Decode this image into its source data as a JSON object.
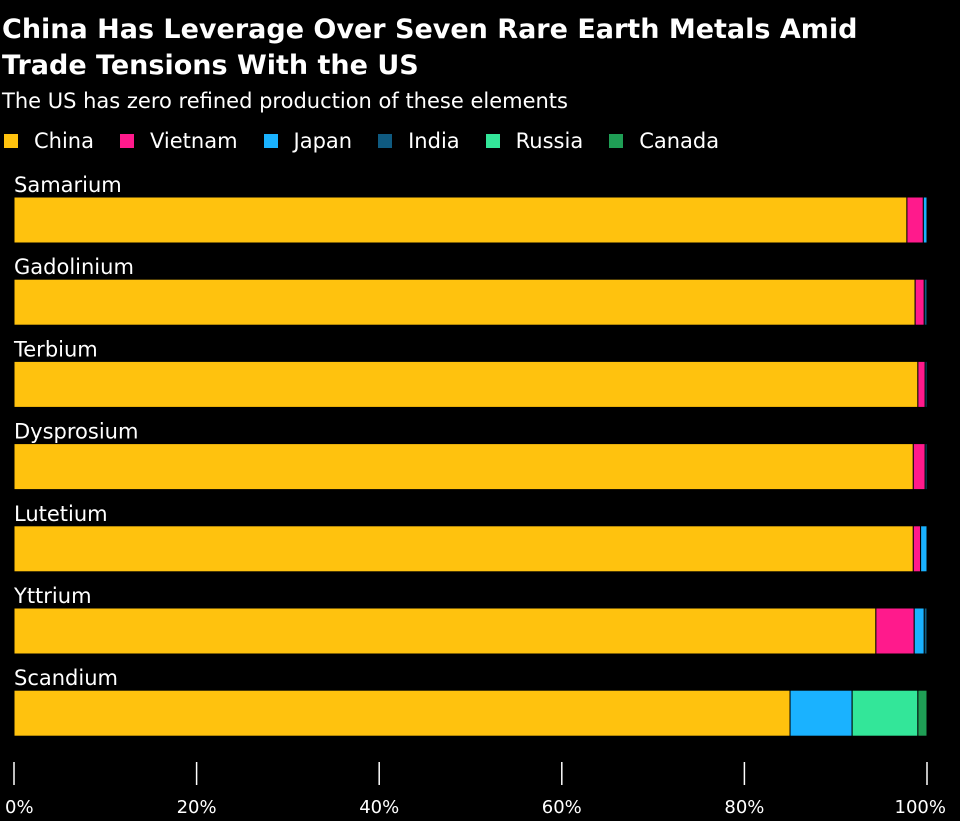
{
  "title": "China Has Leverage Over Seven Rare Earth Metals Amid Trade Tensions With the US",
  "subtitle": "The US has zero refined production of these elements",
  "colors": {
    "China": "#ffc20e",
    "Vietnam": "#ff1a8c",
    "Japan": "#1ab2ff",
    "India": "#0f5a80",
    "Russia": "#33e699",
    "Canada": "#1f9e55",
    "background": "#000000",
    "bar_separator": "#000000"
  },
  "chart_data": {
    "type": "bar",
    "orientation": "horizontal",
    "stacked": true,
    "title": "China Has Leverage Over Seven Rare Earth Metals Amid Trade Tensions With the US",
    "subtitle": "The US has zero refined production of these elements",
    "categories": [
      "Samarium",
      "Gadolinium",
      "Terbium",
      "Dysprosium",
      "Lutetium",
      "Yttrium",
      "Scandium"
    ],
    "series": [
      {
        "name": "China",
        "values": [
          97.8,
          98.7,
          99.0,
          98.5,
          98.5,
          94.4,
          85.0
        ]
      },
      {
        "name": "Vietnam",
        "values": [
          1.8,
          1.0,
          0.8,
          1.3,
          0.8,
          4.2,
          0.0
        ]
      },
      {
        "name": "Japan",
        "values": [
          0.4,
          0.0,
          0.0,
          0.0,
          0.7,
          1.1,
          6.8
        ]
      },
      {
        "name": "India",
        "values": [
          0.0,
          0.3,
          0.2,
          0.2,
          0.0,
          0.3,
          0.0
        ]
      },
      {
        "name": "Russia",
        "values": [
          0.0,
          0.0,
          0.0,
          0.0,
          0.0,
          0.0,
          7.2
        ]
      },
      {
        "name": "Canada",
        "values": [
          0.0,
          0.0,
          0.0,
          0.0,
          0.0,
          0.0,
          1.0
        ]
      }
    ],
    "xlim": [
      0,
      100
    ],
    "xticks": [
      "0%",
      "20%",
      "40%",
      "60%",
      "80%",
      "100%"
    ],
    "xtick_values": [
      0,
      20,
      40,
      60,
      80,
      100
    ],
    "legend": [
      "China",
      "Vietnam",
      "Japan",
      "India",
      "Russia",
      "Canada"
    ],
    "legend_position": "top-left",
    "grid": false
  }
}
